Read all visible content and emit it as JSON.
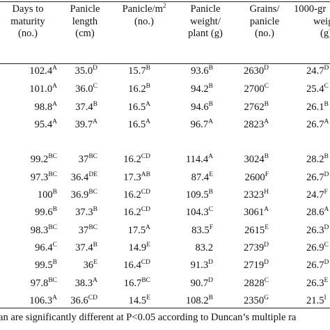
{
  "headers": {
    "days": [
      "Days to",
      "maturity",
      "(no.)"
    ],
    "panicle_length": [
      "Panicle",
      "length",
      "(cm)"
    ],
    "panicle_m2": [
      "Panicle/m",
      "2",
      "(no.)"
    ],
    "panicle_weight": [
      "Panicle",
      "weight/",
      "plant (g)"
    ],
    "grains": [
      "Grains/",
      "panicle",
      "(no.)"
    ],
    "grain_weight": [
      "1000-gr",
      "weigh",
      "(g)"
    ]
  },
  "rows": [
    {
      "days": "102.4",
      "days_s": "A",
      "len": "35.0",
      "len_s": "D",
      "pm2": "15.7",
      "pm2_s": "B",
      "pw": "93.6",
      "pw_s": "B",
      "gr": "2630",
      "gr_s": "D",
      "gw": "24.7",
      "gw_s": "D"
    },
    {
      "days": "101.0",
      "days_s": "A",
      "len": "36.0",
      "len_s": "C",
      "pm2": "16.2",
      "pm2_s": "B",
      "pw": "94.2",
      "pw_s": "B",
      "gr": "2700",
      "gr_s": "C",
      "gw": "25.4",
      "gw_s": "C"
    },
    {
      "days": "98.8",
      "days_s": "A",
      "len": "37.4",
      "len_s": "B",
      "pm2": "16.5",
      "pm2_s": "A",
      "pw": "94.6",
      "pw_s": "B",
      "gr": "2762",
      "gr_s": "B",
      "gw": "26.1",
      "gw_s": "B"
    },
    {
      "days": "95.4",
      "days_s": "A",
      "len": "39.7",
      "len_s": "A",
      "pm2": "16.5",
      "pm2_s": "A",
      "pw": "96.7",
      "pw_s": "A",
      "gr": "2823",
      "gr_s": "A",
      "gw": "26.7",
      "gw_s": "A"
    },
    {
      "days": "99.2",
      "days_s": "BC",
      "len": "37",
      "len_s": "BC",
      "pm2": "16.2",
      "pm2_s": "CD",
      "pw": "114.4",
      "pw_s": "A",
      "gr": "3024",
      "gr_s": "B",
      "gw": "28.2",
      "gw_s": "B"
    },
    {
      "days": "97.3",
      "days_s": "BC",
      "len": "36.4",
      "len_s": "DE",
      "pm2": "17.3",
      "pm2_s": "AB",
      "pw": "87.4",
      "pw_s": "E",
      "gr": "2600",
      "gr_s": "F",
      "gw": "26.7",
      "gw_s": "D"
    },
    {
      "days": "100",
      "days_s": "B",
      "len": "36.9",
      "len_s": "BC",
      "pm2": "16.2",
      "pm2_s": "CD",
      "pw": "109.5",
      "pw_s": "B",
      "gr": "2323",
      "gr_s": "H",
      "gw": "24.7",
      "gw_s": "F"
    },
    {
      "days": "99.6",
      "days_s": "B",
      "len": "37.3",
      "len_s": "B",
      "pm2": "16.2",
      "pm2_s": "CD",
      "pw": "104.3",
      "pw_s": "C",
      "gr": "3061",
      "gr_s": "A",
      "gw": "28.6",
      "gw_s": "A"
    },
    {
      "days": "98.3",
      "days_s": "BC",
      "len": "37",
      "len_s": "BC",
      "pm2": "17.5",
      "pm2_s": "A",
      "pw": "83.5",
      "pw_s": "F",
      "gr": "2615",
      "gr_s": "E",
      "gw": "26.3",
      "gw_s": "D"
    },
    {
      "days": "96.4",
      "days_s": "C",
      "len": "37.4",
      "len_s": "B",
      "pm2": "14.9",
      "pm2_s": "E",
      "pw": "83.2",
      "pw_s": "",
      "gr": "2739",
      "gr_s": "D",
      "gw": "26.9",
      "gw_s": "C"
    },
    {
      "days": "99.5",
      "days_s": "B",
      "len": "36",
      "len_s": "E",
      "pm2": "16.4",
      "pm2_s": "CD",
      "pw": "91.3",
      "pw_s": "D",
      "gr": "2719",
      "gr_s": "D",
      "gw": "26.7",
      "gw_s": "D"
    },
    {
      "days": "97.8",
      "days_s": "BC",
      "len": "38.3",
      "len_s": "A",
      "pm2": "16.7",
      "pm2_s": "BC",
      "pw": "90.7",
      "pw_s": "D",
      "gr": "2828",
      "gr_s": "C",
      "gw": "26.3",
      "gw_s": "E"
    },
    {
      "days": "106.3",
      "days_s": "A",
      "len": "36.6",
      "len_s": "CD",
      "pm2": "14.5",
      "pm2_s": "E",
      "pw": "108.2",
      "pw_s": "B",
      "gr": "2350",
      "gr_s": "G",
      "gw": "21.5",
      "gw_s": "I"
    }
  ],
  "footnote": "an are significantly different at P<0.05 according to Duncan’s multiple ra"
}
